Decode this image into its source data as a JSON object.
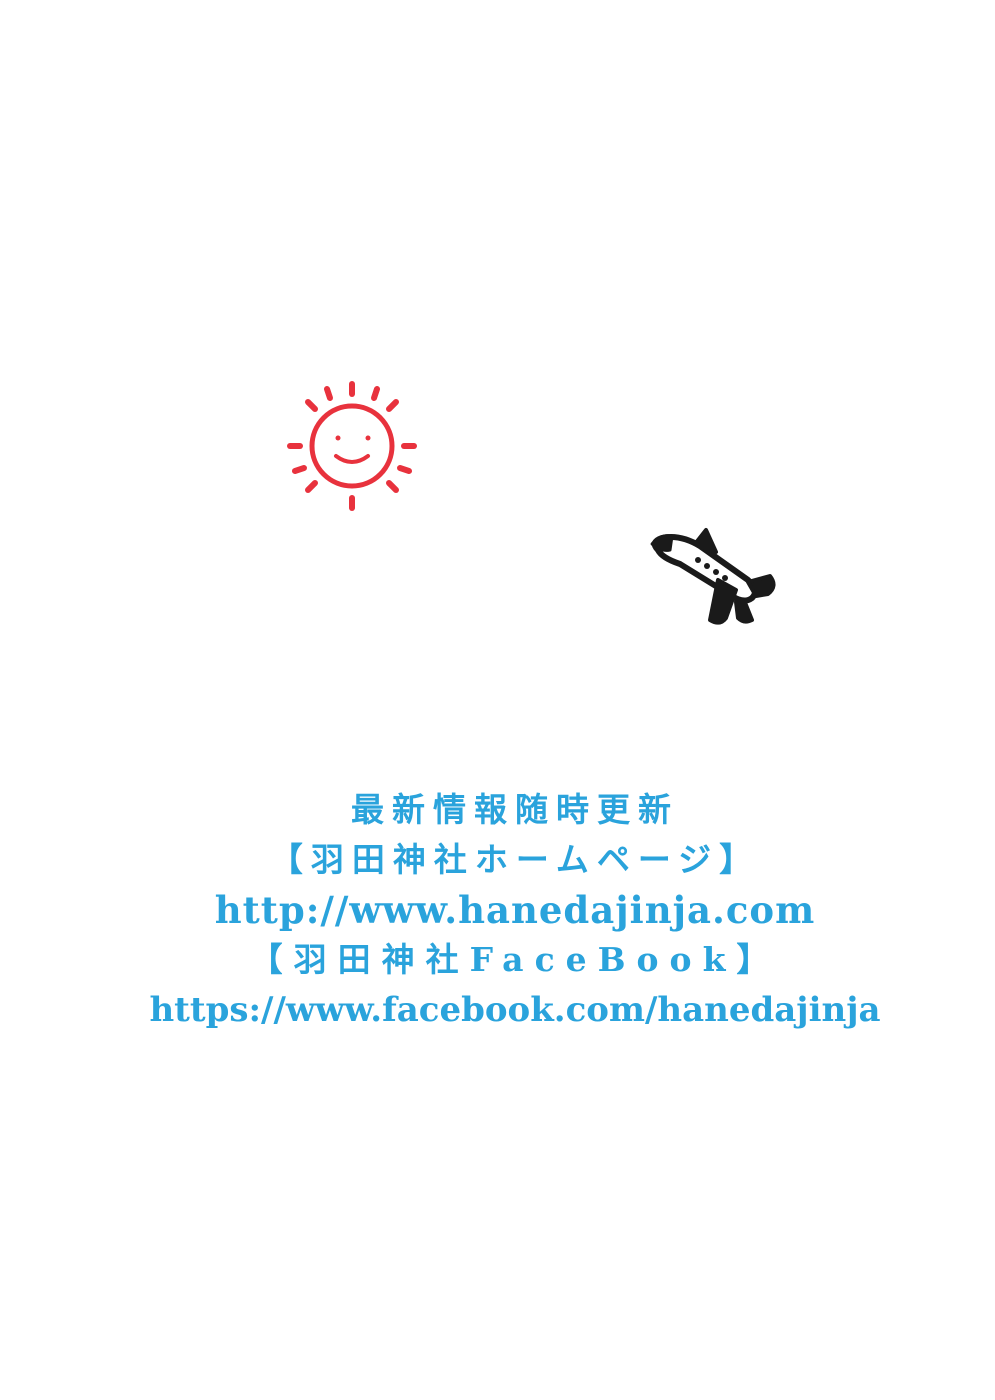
{
  "colors": {
    "sun": "#e8323d",
    "ink": "#2aa3dc",
    "plane": "#1a1a1a",
    "background": "#ffffff"
  },
  "stamps": {
    "sun_icon": "smiling-sun-icon",
    "plane_icon": "airplane-icon"
  },
  "info": {
    "line1": "最新情報随時更新",
    "line2": "【羽田神社ホームページ】",
    "line3": "http://www.hanedajinja.com",
    "line4": "【羽田神社FaceBook】",
    "line5": "https://www.facebook.com/hanedajinja"
  }
}
